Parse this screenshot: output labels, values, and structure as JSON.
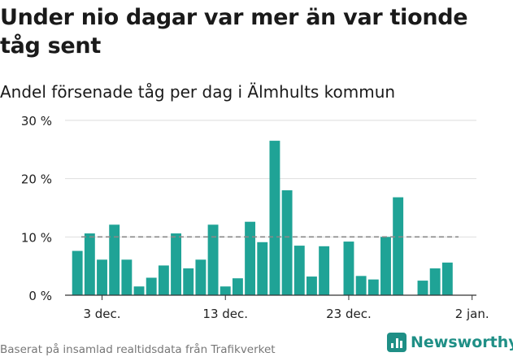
{
  "title": "Under nio dagar var mer än var tionde tåg sent",
  "subtitle": "Andel försenade tåg per dag i Älmhults kommun",
  "source": "Baserat på insamlad realtidsdata från Trafikverket",
  "brand": {
    "name": "Newsworthy",
    "color": "#1f8f86",
    "icon": "newsworthy-bar-chart-icon"
  },
  "chart_data": {
    "type": "bar",
    "color": "#1fa396",
    "reference_line": {
      "value": 10,
      "style": "dashed",
      "color": "#888888"
    },
    "ylim": [
      0,
      30
    ],
    "yticks": [
      0,
      10,
      20,
      30
    ],
    "ytick_labels": [
      "0 %",
      "10 %",
      "20 %",
      "30 %"
    ],
    "x_range": [
      "2023-11-30",
      "2024-01-02"
    ],
    "xticks": [
      {
        "date": "2023-12-03",
        "label": "3 dec."
      },
      {
        "date": "2023-12-13",
        "label": "13 dec."
      },
      {
        "date": "2023-12-23",
        "label": "23 dec."
      },
      {
        "date": "2024-01-02",
        "label": "2 jan."
      }
    ],
    "xlabel": "",
    "ylabel": "",
    "grid": true,
    "points": [
      {
        "date": "2023-12-01",
        "value": 7.6
      },
      {
        "date": "2023-12-02",
        "value": 10.6
      },
      {
        "date": "2023-12-03",
        "value": 6.1
      },
      {
        "date": "2023-12-04",
        "value": 12.1
      },
      {
        "date": "2023-12-05",
        "value": 6.1
      },
      {
        "date": "2023-12-06",
        "value": 1.5
      },
      {
        "date": "2023-12-07",
        "value": 3.0
      },
      {
        "date": "2023-12-08",
        "value": 5.1
      },
      {
        "date": "2023-12-09",
        "value": 10.6
      },
      {
        "date": "2023-12-10",
        "value": 4.6
      },
      {
        "date": "2023-12-11",
        "value": 6.1
      },
      {
        "date": "2023-12-12",
        "value": 12.1
      },
      {
        "date": "2023-12-13",
        "value": 1.5
      },
      {
        "date": "2023-12-14",
        "value": 2.9
      },
      {
        "date": "2023-12-15",
        "value": 12.6
      },
      {
        "date": "2023-12-16",
        "value": 9.1
      },
      {
        "date": "2023-12-17",
        "value": 26.5
      },
      {
        "date": "2023-12-18",
        "value": 18.0
      },
      {
        "date": "2023-12-19",
        "value": 8.5
      },
      {
        "date": "2023-12-20",
        "value": 3.2
      },
      {
        "date": "2023-12-21",
        "value": 8.4
      },
      {
        "date": "2023-12-23",
        "value": 9.2
      },
      {
        "date": "2023-12-24",
        "value": 3.3
      },
      {
        "date": "2023-12-25",
        "value": 2.7
      },
      {
        "date": "2023-12-26",
        "value": 10.0
      },
      {
        "date": "2023-12-27",
        "value": 16.8
      },
      {
        "date": "2023-12-29",
        "value": 2.5
      },
      {
        "date": "2023-12-30",
        "value": 4.6
      },
      {
        "date": "2023-12-31",
        "value": 5.6
      }
    ]
  }
}
